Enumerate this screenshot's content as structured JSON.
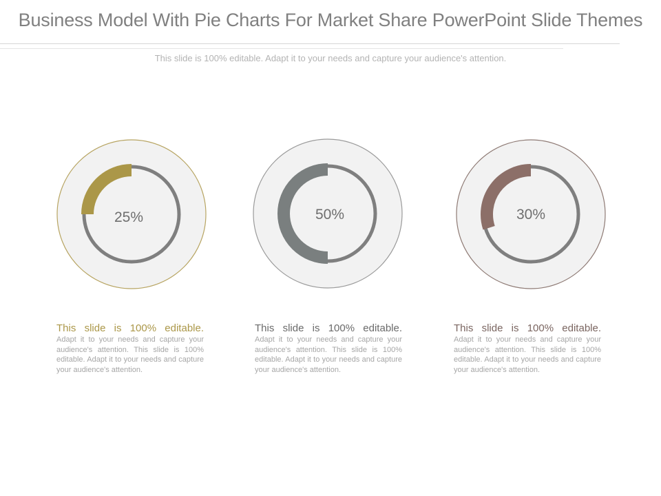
{
  "title": "Business Model With Pie Charts For Market Share PowerPoint Slide Themes",
  "subtitle": "This slide is 100% editable. Adapt it to your needs and capture your audience's attention.",
  "colors": {
    "track": "#7f7f7f",
    "disk": "#f2f2f2",
    "gold": "#ab9748",
    "gray": "#7a7f7f",
    "brown": "#8c6f68"
  },
  "chart_data": [
    {
      "type": "pie",
      "values": [
        25
      ],
      "labels": [
        "25%"
      ],
      "color": "#ab9748",
      "outline": "#b7a461"
    },
    {
      "type": "pie",
      "values": [
        50
      ],
      "labels": [
        "50%"
      ],
      "color": "#7a7f7f",
      "outline": "#9a9a9a"
    },
    {
      "type": "pie",
      "values": [
        30
      ],
      "labels": [
        "30%"
      ],
      "color": "#8c6f68",
      "outline": "#8e7a74"
    }
  ],
  "columns": [
    {
      "heading": "This slide is 100% editable.",
      "heading_color": "#ab9748",
      "text": "Adapt it to your needs and capture your audience's attention. This slide is 100% editable. Adapt it to your needs and capture your audience's attention."
    },
    {
      "heading": "This slide is 100% editable.",
      "heading_color": "#6a6a6a",
      "text": "Adapt it to your needs and capture your audience's attention. This slide is 100% editable. Adapt it to your needs and capture your audience's attention."
    },
    {
      "heading": "This slide is 100% editable.",
      "heading_color": "#7a6560",
      "text": "Adapt it to your needs and capture your audience's attention. This slide is 100% editable. Adapt it to your needs and capture your audience's attention."
    }
  ]
}
